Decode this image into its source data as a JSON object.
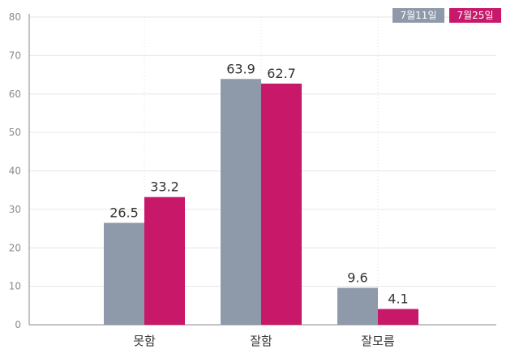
{
  "chart_data": {
    "type": "bar",
    "categories": [
      "못함",
      "잘함",
      "잘모름"
    ],
    "series": [
      {
        "name": "7월11일",
        "color": "#8e99aa",
        "values": [
          26.5,
          63.9,
          9.6
        ]
      },
      {
        "name": "7월25일",
        "color": "#c8186a",
        "values": [
          33.2,
          62.7,
          4.1
        ]
      }
    ],
    "ylim": [
      0,
      80
    ],
    "yticks": [
      0,
      10,
      20,
      30,
      40,
      50,
      60,
      70,
      80
    ],
    "grid": true,
    "legend_position": "top-right",
    "title": "",
    "xlabel": "",
    "ylabel": ""
  }
}
